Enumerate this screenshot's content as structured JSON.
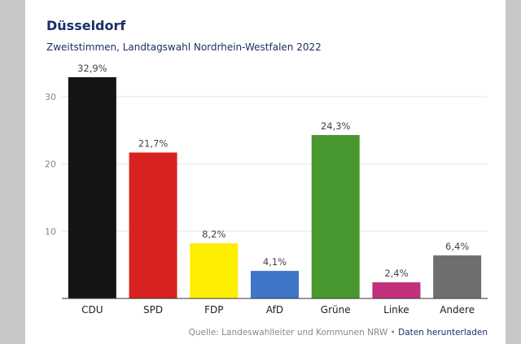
{
  "header": {
    "title": "Düsseldorf",
    "subtitle": "Zweitstimmen, Landtagswahl Nordrhein-Westfalen 2022"
  },
  "footer": {
    "source": "Quelle: Landeswahlleiter und Kommunen NRW",
    "separator": "•",
    "download_link": "Daten herunterladen"
  },
  "chart_data": {
    "type": "bar",
    "title": "Düsseldorf",
    "subtitle": "Zweitstimmen, Landtagswahl Nordrhein-Westfalen 2022",
    "categories": [
      "CDU",
      "SPD",
      "FDP",
      "AfD",
      "Grüne",
      "Linke",
      "Andere"
    ],
    "values": [
      32.9,
      21.7,
      8.2,
      4.1,
      24.3,
      2.4,
      6.4
    ],
    "value_labels": [
      "32,9%",
      "21,7%",
      "8,2%",
      "4,1%",
      "24,3%",
      "2,4%",
      "6,4%"
    ],
    "colors": [
      "#141414",
      "#d9211f",
      "#ffed00",
      "#3d76c7",
      "#48982f",
      "#c0317a",
      "#6f6f71"
    ],
    "yticks": [
      10,
      20,
      30
    ],
    "ytick_labels": [
      "10",
      "20",
      "30"
    ],
    "ylim": [
      0,
      34
    ],
    "xlabel": "",
    "ylabel": "",
    "grid": true
  }
}
